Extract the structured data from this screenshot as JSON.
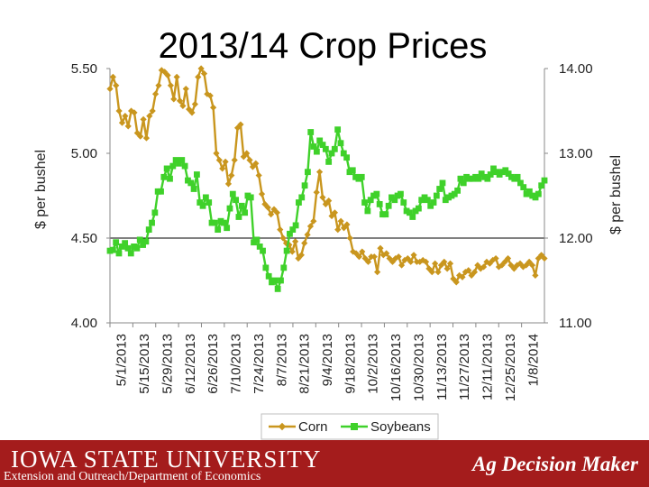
{
  "chart_data": {
    "type": "line",
    "title": "2013/14 Crop Prices",
    "ylabel_left": "$ per bushel",
    "ylabel_right": "$ per bushel",
    "ylim_left": [
      4.0,
      5.5
    ],
    "ylim_right": [
      11.0,
      14.0
    ],
    "yticks_left": [
      "4.00",
      "4.50",
      "5.00",
      "5.50"
    ],
    "yticks_right": [
      "11.00",
      "12.00",
      "13.00",
      "14.00"
    ],
    "x_tick_labels": [
      "5/1/2013",
      "5/15/2013",
      "5/29/2013",
      "6/12/2013",
      "6/26/2013",
      "7/10/2013",
      "7/24/2013",
      "8/7/2013",
      "8/21/2013",
      "9/4/2013",
      "9/18/2013",
      "10/2/2013",
      "10/16/2013",
      "10/30/2013",
      "11/13/2013",
      "11/27/2013",
      "12/11/2013",
      "12/25/2013",
      "1/8/2014"
    ],
    "series": [
      {
        "name": "Corn",
        "axis": "left",
        "color": "#c9961e",
        "marker": "diamond",
        "values": [
          5.38,
          5.45,
          5.4,
          5.25,
          5.18,
          5.22,
          5.16,
          5.25,
          5.24,
          5.12,
          5.1,
          5.2,
          5.09,
          5.22,
          5.25,
          5.35,
          5.4,
          5.49,
          5.48,
          5.46,
          5.4,
          5.32,
          5.45,
          5.31,
          5.28,
          5.38,
          5.26,
          5.24,
          5.29,
          5.45,
          5.5,
          5.47,
          5.35,
          5.34,
          5.27,
          5.0,
          4.96,
          4.91,
          4.95,
          4.82,
          4.87,
          4.96,
          5.15,
          5.17,
          4.98,
          5.0,
          4.96,
          4.92,
          4.94,
          4.87,
          4.76,
          4.7,
          4.68,
          4.64,
          4.67,
          4.65,
          4.55,
          4.5,
          4.47,
          4.46,
          4.42,
          4.48,
          4.38,
          4.4,
          4.47,
          4.52,
          4.57,
          4.6,
          4.77,
          4.89,
          4.74,
          4.7,
          4.72,
          4.63,
          4.65,
          4.55,
          4.6,
          4.56,
          4.58,
          4.5,
          4.42,
          4.41,
          4.39,
          4.42,
          4.38,
          4.36,
          4.39,
          4.39,
          4.3,
          4.44,
          4.4,
          4.41,
          4.38,
          4.36,
          4.38,
          4.39,
          4.34,
          4.37,
          4.38,
          4.36,
          4.4,
          4.36,
          4.36,
          4.37,
          4.36,
          4.32,
          4.3,
          4.35,
          4.3,
          4.34,
          4.36,
          4.32,
          4.35,
          4.26,
          4.24,
          4.28,
          4.27,
          4.3,
          4.31,
          4.28,
          4.3,
          4.34,
          4.32,
          4.33,
          4.36,
          4.35,
          4.37,
          4.38,
          4.33,
          4.34,
          4.36,
          4.38,
          4.34,
          4.32,
          4.34,
          4.35,
          4.33,
          4.34,
          4.36,
          4.34,
          4.28,
          4.38,
          4.4,
          4.38
        ]
      },
      {
        "name": "Soybeans",
        "axis": "right",
        "color": "#3fd12a",
        "marker": "square",
        "values": [
          11.85,
          11.86,
          11.95,
          11.82,
          11.9,
          11.94,
          11.88,
          11.82,
          11.9,
          11.88,
          11.98,
          11.92,
          11.96,
          12.1,
          12.18,
          12.3,
          12.55,
          12.55,
          12.72,
          12.82,
          12.7,
          12.85,
          12.92,
          12.88,
          12.92,
          12.85,
          12.68,
          12.65,
          12.58,
          12.75,
          12.42,
          12.38,
          12.48,
          12.42,
          12.18,
          12.18,
          12.1,
          12.2,
          12.18,
          12.12,
          12.35,
          12.52,
          12.45,
          12.25,
          12.38,
          12.3,
          12.5,
          12.48,
          11.95,
          11.98,
          11.9,
          11.85,
          11.65,
          11.55,
          11.48,
          11.5,
          11.4,
          11.5,
          11.65,
          11.85,
          12.05,
          12.1,
          12.15,
          12.42,
          12.48,
          12.62,
          12.78,
          13.25,
          13.08,
          13.02,
          13.15,
          13.1,
          13.05,
          12.9,
          13.0,
          13.05,
          13.28,
          13.12,
          13.0,
          12.95,
          12.78,
          12.8,
          12.72,
          12.7,
          12.72,
          12.42,
          12.32,
          12.45,
          12.5,
          12.52,
          12.4,
          12.28,
          12.28,
          12.38,
          12.48,
          12.45,
          12.5,
          12.52,
          12.42,
          12.32,
          12.3,
          12.25,
          12.32,
          12.35,
          12.45,
          12.48,
          12.45,
          12.38,
          12.42,
          12.5,
          12.58,
          12.65,
          12.45,
          12.48,
          12.5,
          12.52,
          12.56,
          12.7,
          12.65,
          12.72,
          12.7,
          12.7,
          12.72,
          12.7,
          12.76,
          12.72,
          12.7,
          12.75,
          12.82,
          12.78,
          12.75,
          12.78,
          12.8,
          12.76,
          12.72,
          12.7,
          12.72,
          12.65,
          12.6,
          12.52,
          12.55,
          12.5,
          12.48,
          12.52,
          12.62,
          12.68
        ]
      }
    ],
    "legend": [
      "Corn",
      "Soybeans"
    ],
    "legend_position": "bottom"
  },
  "footer": {
    "university": "IOWA STATE UNIVERSITY",
    "department": "Extension and Outreach/Department of Economics",
    "brand": "Ag Decision Maker"
  },
  "colors": {
    "footer_bg": "#a41c1c",
    "corn": "#c9961e",
    "soybeans": "#3fd12a"
  }
}
